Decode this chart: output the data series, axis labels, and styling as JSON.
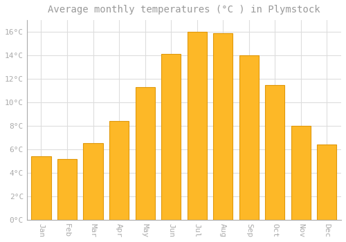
{
  "months": [
    "Jan",
    "Feb",
    "Mar",
    "Apr",
    "May",
    "Jun",
    "Jul",
    "Aug",
    "Sep",
    "Oct",
    "Nov",
    "Dec"
  ],
  "values": [
    5.4,
    5.2,
    6.5,
    8.4,
    11.3,
    14.1,
    16.0,
    15.9,
    14.0,
    11.5,
    8.0,
    6.4
  ],
  "bar_color": "#FDB827",
  "bar_edge_color": "#E0980A",
  "background_color": "#FFFFFF",
  "grid_color": "#DDDDDD",
  "title": "Average monthly temperatures (°C ) in Plymstock",
  "title_fontsize": 10,
  "tick_label_color": "#AAAAAA",
  "title_color": "#999999",
  "ylim": [
    0,
    17
  ],
  "ytick_values": [
    0,
    2,
    4,
    6,
    8,
    10,
    12,
    14,
    16
  ],
  "ytick_labels": [
    "0°C",
    "2°C",
    "4°C",
    "6°C",
    "8°C",
    "10°C",
    "12°C",
    "14°C",
    "16°C"
  ]
}
